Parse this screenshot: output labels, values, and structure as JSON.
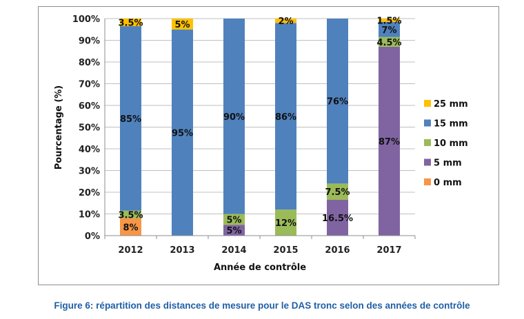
{
  "caption": "Figure 6: répartition des distances de mesure pour le DAS tronc selon des années de contrôle",
  "chart_data": {
    "type": "bar",
    "stacked": true,
    "title": "",
    "xlabel": "Année de contrôle",
    "ylabel": "Pourcentage (%)",
    "ylim": [
      0,
      100
    ],
    "yticks": [
      "0%",
      "10%",
      "20%",
      "30%",
      "40%",
      "50%",
      "60%",
      "70%",
      "80%",
      "90%",
      "100%"
    ],
    "grid": true,
    "legend_position": "right",
    "categories": [
      "2012",
      "2013",
      "2014",
      "2015",
      "2016",
      "2017"
    ],
    "series": [
      {
        "name": "0 mm",
        "color": "#f79646",
        "values": [
          8,
          0,
          0,
          0,
          0,
          0
        ],
        "labels": [
          "8%",
          "",
          "",
          "",
          "",
          ""
        ]
      },
      {
        "name": "5 mm",
        "color": "#8064a2",
        "values": [
          0,
          0,
          5,
          0,
          16.5,
          87
        ],
        "labels": [
          "",
          "",
          "5%",
          "",
          "16.5%",
          "87%"
        ]
      },
      {
        "name": "10 mm",
        "color": "#9bbb59",
        "values": [
          3.5,
          0,
          5,
          12,
          7.5,
          4.5
        ],
        "labels": [
          "3.5%",
          "",
          "5%",
          "12%",
          "7.5%",
          "4.5%"
        ]
      },
      {
        "name": "15 mm",
        "color": "#4f81bd",
        "values": [
          85,
          95,
          90,
          86,
          76,
          7
        ],
        "labels": [
          "85%",
          "95%",
          "90%",
          "86%",
          "76%",
          "7%"
        ]
      },
      {
        "name": "25 mm",
        "color": "#ffc000",
        "values": [
          3.5,
          5,
          0,
          2,
          0,
          1.5
        ],
        "labels": [
          "3.5%",
          "5%",
          "",
          "2%",
          "",
          "1.5%"
        ]
      }
    ],
    "legend_order": [
      "25 mm",
      "15 mm",
      "10 mm",
      "5 mm",
      "0 mm"
    ]
  }
}
